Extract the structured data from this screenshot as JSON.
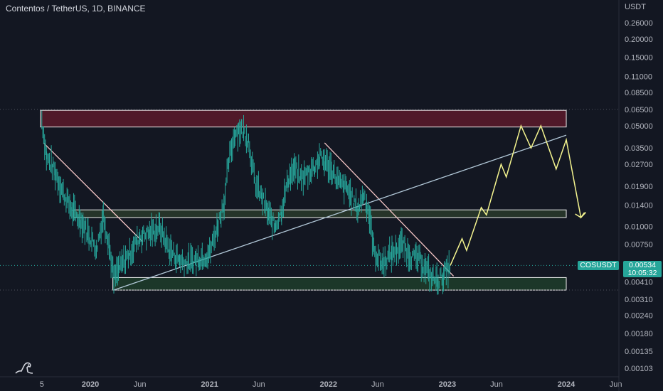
{
  "header": {
    "title": "Contentos / TetherUS, 1D, BINANCE"
  },
  "price_axis": {
    "currency": "USDT"
  },
  "badges": {
    "symbol": "COSUSDT",
    "price": "0.00534",
    "countdown": "10:05:32"
  },
  "colors": {
    "background": "#131722",
    "candle_up": "#26a69a",
    "candle_down": "#26a69a",
    "projection": "#f5f58f",
    "trendline": "#f8c8c8",
    "support_line": "#b2c8d8",
    "resistance_zone": "#5c1a2a",
    "mid_zone": "#2a3a2a",
    "support_zone": "#1e3d2a"
  },
  "chart_data": {
    "type": "line",
    "title": "Contentos / TetherUS, 1D, BINANCE",
    "xlabel": "",
    "ylabel": "",
    "y_scale": "log",
    "ylim": [
      0.00095,
      0.32
    ],
    "x_tick_labels": [
      "5",
      "2020",
      "Jun",
      "2021",
      "Jun",
      "2022",
      "Jun",
      "2023",
      "Jun",
      "2024",
      "Jun"
    ],
    "y_tick_labels": [
      "0.26000",
      "0.20000",
      "0.15000",
      "0.11000",
      "0.08500",
      "0.06500",
      "0.05000",
      "0.03500",
      "0.02700",
      "0.01900",
      "0.01400",
      "0.01000",
      "0.00750",
      "0.00534",
      "0.00410",
      "0.00310",
      "0.00240",
      "0.00180",
      "0.00135",
      "0.00103"
    ],
    "price_series": [
      [
        "2019-08-05",
        0.055
      ],
      [
        "2019-08-20",
        0.03
      ],
      [
        "2019-09-15",
        0.024
      ],
      [
        "2019-10-10",
        0.017
      ],
      [
        "2019-11-05",
        0.013
      ],
      [
        "2019-12-01",
        0.011
      ],
      [
        "2019-12-25",
        0.009
      ],
      [
        "2020-01-20",
        0.007
      ],
      [
        "2020-02-10",
        0.012
      ],
      [
        "2020-02-25",
        0.008
      ],
      [
        "2020-03-13",
        0.0043
      ],
      [
        "2020-04-01",
        0.0052
      ],
      [
        "2020-05-01",
        0.0065
      ],
      [
        "2020-06-01",
        0.0085
      ],
      [
        "2020-07-01",
        0.009
      ],
      [
        "2020-08-01",
        0.0098
      ],
      [
        "2020-09-01",
        0.0068
      ],
      [
        "2020-10-01",
        0.0058
      ],
      [
        "2020-11-01",
        0.0056
      ],
      [
        "2020-12-01",
        0.006
      ],
      [
        "2021-01-01",
        0.0065
      ],
      [
        "2021-01-25",
        0.01
      ],
      [
        "2021-02-15",
        0.015
      ],
      [
        "2021-03-01",
        0.028
      ],
      [
        "2021-03-20",
        0.045
      ],
      [
        "2021-04-10",
        0.048
      ],
      [
        "2021-05-01",
        0.04
      ],
      [
        "2021-05-20",
        0.02
      ],
      [
        "2021-06-10",
        0.016
      ],
      [
        "2021-07-01",
        0.012
      ],
      [
        "2021-07-20",
        0.01
      ],
      [
        "2021-08-10",
        0.013
      ],
      [
        "2021-09-01",
        0.022
      ],
      [
        "2021-09-20",
        0.025
      ],
      [
        "2021-10-10",
        0.021
      ],
      [
        "2021-11-01",
        0.024
      ],
      [
        "2021-11-20",
        0.026
      ],
      [
        "2021-12-05",
        0.03
      ],
      [
        "2021-12-20",
        0.028
      ],
      [
        "2022-01-10",
        0.025
      ],
      [
        "2022-02-01",
        0.02
      ],
      [
        "2022-03-01",
        0.018
      ],
      [
        "2022-04-01",
        0.013
      ],
      [
        "2022-04-20",
        0.017
      ],
      [
        "2022-05-10",
        0.011
      ],
      [
        "2022-05-20",
        0.0068
      ],
      [
        "2022-06-15",
        0.0055
      ],
      [
        "2022-07-15",
        0.0065
      ],
      [
        "2022-08-15",
        0.0075
      ],
      [
        "2022-09-10",
        0.0062
      ],
      [
        "2022-10-10",
        0.0058
      ],
      [
        "2022-11-10",
        0.0045
      ],
      [
        "2022-12-01",
        0.0042
      ],
      [
        "2022-12-20",
        0.0045
      ],
      [
        "2023-01-10",
        0.00534
      ]
    ],
    "projection": [
      [
        "2023-01-10",
        0.00534
      ],
      [
        "2023-02-15",
        0.0082
      ],
      [
        "2023-03-01",
        0.0068
      ],
      [
        "2023-04-15",
        0.0135
      ],
      [
        "2023-05-01",
        0.012
      ],
      [
        "2023-06-15",
        0.027
      ],
      [
        "2023-07-01",
        0.022
      ],
      [
        "2023-08-15",
        0.05
      ],
      [
        "2023-09-15",
        0.035
      ],
      [
        "2023-10-15",
        0.05
      ],
      [
        "2023-12-01",
        0.025
      ],
      [
        "2024-01-01",
        0.04
      ],
      [
        "2024-02-15",
        0.0115
      ],
      [
        "2024-03-01",
        0.0125
      ]
    ],
    "zones": [
      {
        "name": "resistance",
        "x0": "2019-08-01",
        "x1": "2024-01-01",
        "y_low": 0.049,
        "y_high": 0.064
      },
      {
        "name": "mid",
        "x0": "2019-11-10",
        "x1": "2024-01-01",
        "y_low": 0.0115,
        "y_high": 0.013
      },
      {
        "name": "support",
        "x0": "2020-03-10",
        "x1": "2024-01-01",
        "y_low": 0.0036,
        "y_high": 0.0044
      }
    ],
    "trendlines": [
      {
        "name": "downtrend-1",
        "from": [
          "2019-08-10",
          0.038
        ],
        "to": [
          "2020-06-10",
          0.0078
        ]
      },
      {
        "name": "downtrend-2",
        "from": [
          "2021-12-20",
          0.038
        ],
        "to": [
          "2023-01-20",
          0.0045
        ]
      },
      {
        "name": "rising-support",
        "from": [
          "2020-03-13",
          0.0036
        ],
        "to": [
          "2024-01-01",
          0.043
        ]
      }
    ],
    "hlines": [
      0.065,
      0.00534,
      0.0036
    ],
    "legend": "none",
    "grid": false
  }
}
